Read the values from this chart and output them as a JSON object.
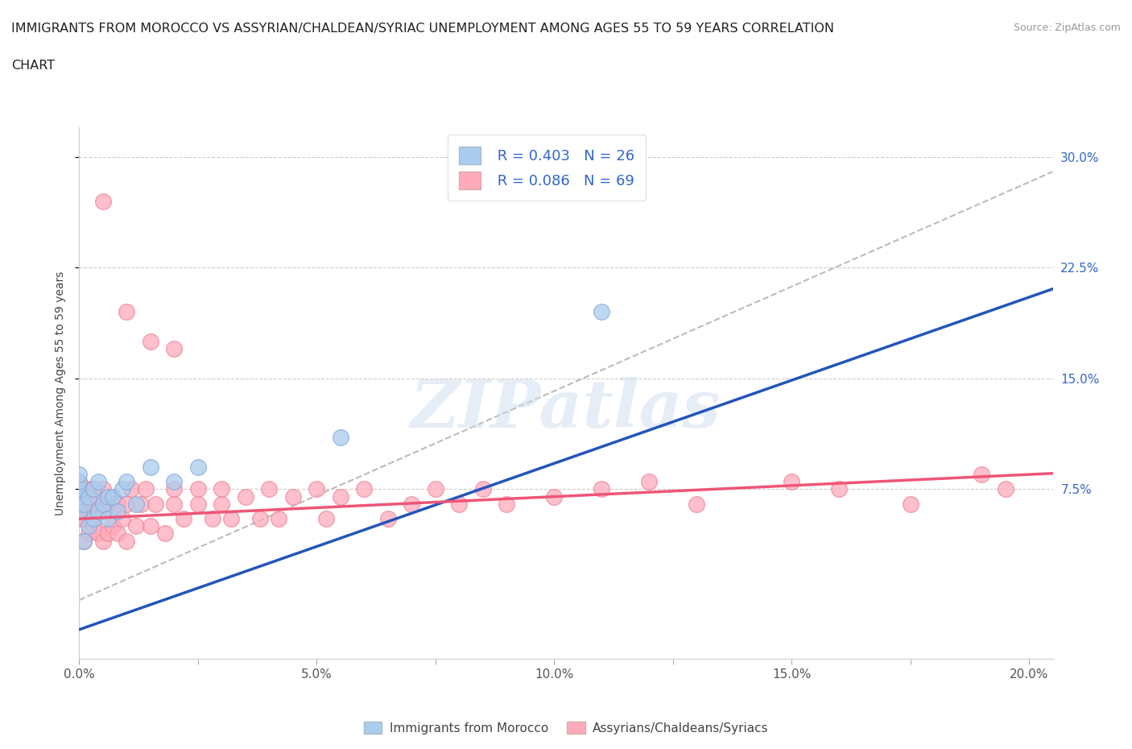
{
  "title_line1": "IMMIGRANTS FROM MOROCCO VS ASSYRIAN/CHALDEAN/SYRIAC UNEMPLOYMENT AMONG AGES 55 TO 59 YEARS CORRELATION",
  "title_line2": "CHART",
  "source_text": "Source: ZipAtlas.com",
  "ylabel": "Unemployment Among Ages 55 to 59 years",
  "xlim": [
    0.0,
    0.205
  ],
  "ylim": [
    -0.04,
    0.32
  ],
  "xtick_labels": [
    "0.0%",
    "",
    "5.0%",
    "",
    "10.0%",
    "",
    "15.0%",
    "",
    "20.0%"
  ],
  "xtick_vals": [
    0.0,
    0.025,
    0.05,
    0.075,
    0.1,
    0.125,
    0.15,
    0.175,
    0.2
  ],
  "ytick_labels_right": [
    "7.5%",
    "15.0%",
    "22.5%",
    "30.0%"
  ],
  "ytick_vals_right": [
    0.075,
    0.15,
    0.225,
    0.3
  ],
  "blue_R": 0.403,
  "blue_N": 26,
  "pink_R": 0.086,
  "pink_N": 69,
  "blue_color": "#aaccee",
  "blue_edge_color": "#88aadd",
  "pink_color": "#ffaabb",
  "pink_edge_color": "#ee8899",
  "blue_line_color": "#2255bb",
  "pink_line_color": "#ee5577",
  "gray_line_color": "#bbbbbb",
  "legend_label_blue": "Immigrants from Morocco",
  "legend_label_pink": "Assyrians/Chaldeans/Syriacs",
  "watermark": "ZIPatlas",
  "blue_scatter_x": [
    0.0,
    0.0,
    0.0,
    0.0,
    0.0,
    0.001,
    0.001,
    0.002,
    0.002,
    0.003,
    0.003,
    0.004,
    0.004,
    0.005,
    0.006,
    0.006,
    0.007,
    0.008,
    0.009,
    0.01,
    0.012,
    0.015,
    0.02,
    0.025,
    0.055,
    0.11
  ],
  "blue_scatter_y": [
    0.06,
    0.07,
    0.075,
    0.08,
    0.085,
    0.04,
    0.065,
    0.05,
    0.07,
    0.055,
    0.075,
    0.06,
    0.08,
    0.065,
    0.055,
    0.07,
    0.07,
    0.06,
    0.075,
    0.08,
    0.065,
    0.09,
    0.08,
    0.09,
    0.11,
    0.195
  ],
  "pink_scatter_x": [
    0.0,
    0.0,
    0.0,
    0.0,
    0.0,
    0.001,
    0.001,
    0.001,
    0.001,
    0.002,
    0.002,
    0.002,
    0.003,
    0.003,
    0.003,
    0.004,
    0.004,
    0.005,
    0.005,
    0.005,
    0.006,
    0.006,
    0.007,
    0.007,
    0.008,
    0.008,
    0.009,
    0.01,
    0.01,
    0.011,
    0.012,
    0.013,
    0.014,
    0.015,
    0.016,
    0.018,
    0.02,
    0.02,
    0.022,
    0.025,
    0.025,
    0.028,
    0.03,
    0.03,
    0.032,
    0.035,
    0.038,
    0.04,
    0.042,
    0.045,
    0.05,
    0.052,
    0.055,
    0.06,
    0.065,
    0.07,
    0.075,
    0.08,
    0.085,
    0.09,
    0.1,
    0.11,
    0.12,
    0.13,
    0.15,
    0.16,
    0.175,
    0.19,
    0.195
  ],
  "pink_scatter_y": [
    0.055,
    0.065,
    0.07,
    0.075,
    0.08,
    0.04,
    0.055,
    0.065,
    0.075,
    0.045,
    0.06,
    0.075,
    0.05,
    0.065,
    0.075,
    0.045,
    0.07,
    0.04,
    0.06,
    0.075,
    0.045,
    0.065,
    0.05,
    0.07,
    0.045,
    0.065,
    0.055,
    0.04,
    0.065,
    0.075,
    0.05,
    0.065,
    0.075,
    0.05,
    0.065,
    0.045,
    0.065,
    0.075,
    0.055,
    0.065,
    0.075,
    0.055,
    0.065,
    0.075,
    0.055,
    0.07,
    0.055,
    0.075,
    0.055,
    0.07,
    0.075,
    0.055,
    0.07,
    0.075,
    0.055,
    0.065,
    0.075,
    0.065,
    0.075,
    0.065,
    0.07,
    0.075,
    0.08,
    0.065,
    0.08,
    0.075,
    0.065,
    0.085,
    0.075
  ],
  "blue_line_x0": 0.0,
  "blue_line_y0": -0.02,
  "blue_line_x1": 0.12,
  "blue_line_y1": 0.115,
  "pink_line_x0": 0.0,
  "pink_line_y0": 0.055,
  "pink_line_x1": 0.2,
  "pink_line_y1": 0.085,
  "gray_line_x0": 0.0,
  "gray_line_y0": 0.0,
  "gray_line_x1": 0.205,
  "gray_line_y1": 0.29
}
